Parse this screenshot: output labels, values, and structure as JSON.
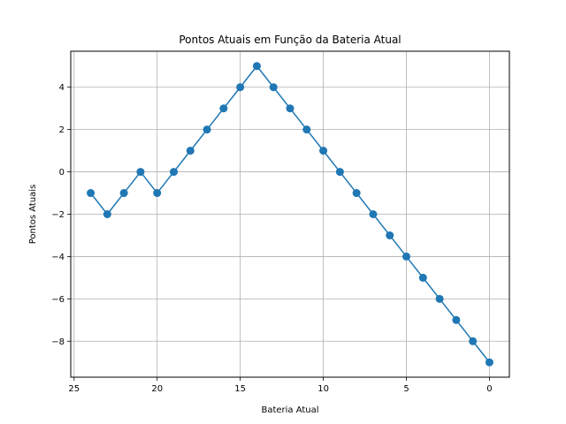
{
  "chart_data": {
    "type": "line",
    "title": "Pontos Atuais em Função da Bateria Atual",
    "xlabel": "Bateria Atual",
    "ylabel": "Pontos Atuais",
    "x_axis_inverted": true,
    "xlim": [
      25.2,
      -1.2
    ],
    "ylim": [
      -9.7,
      5.7
    ],
    "x_ticks": [
      25,
      20,
      15,
      10,
      5,
      0
    ],
    "x_tick_labels": [
      "25",
      "20",
      "15",
      "10",
      "5",
      "0"
    ],
    "y_ticks": [
      4,
      2,
      0,
      -2,
      -4,
      -6,
      -8
    ],
    "y_tick_labels": [
      "4",
      "2",
      "0",
      "−2",
      "−4",
      "−6",
      "−8"
    ],
    "grid": true,
    "marker": "circle",
    "series": [
      {
        "color": "#1f77b4",
        "x": [
          24,
          23,
          22,
          21,
          20,
          19,
          18,
          17,
          16,
          15,
          14,
          13,
          12,
          11,
          10,
          9,
          8,
          7,
          6,
          5,
          4,
          3,
          2,
          1,
          0
        ],
        "y": [
          -1,
          -2,
          -1,
          0,
          -1,
          0,
          1,
          2,
          3,
          4,
          5,
          4,
          3,
          2,
          1,
          0,
          -1,
          -2,
          -3,
          -4,
          -5,
          -6,
          -7,
          -8,
          -9
        ]
      }
    ]
  }
}
